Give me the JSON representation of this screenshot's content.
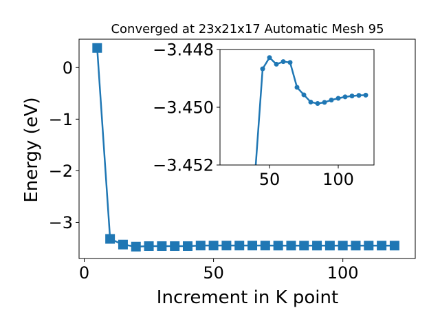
{
  "chart_data": [
    {
      "type": "line",
      "title": "Converged at 23x21x17 Automatic Mesh 95",
      "xlabel": "Increment in K point",
      "ylabel": "Energy (eV)",
      "xlim": [
        -2,
        128
      ],
      "ylim": [
        -3.7,
        0.55
      ],
      "x_ticks": [
        0,
        50,
        100
      ],
      "y_ticks": [
        0,
        -1,
        -2,
        -3
      ],
      "y_tick_labels": [
        "0",
        "−1",
        "−2",
        "−3"
      ],
      "marker": "square",
      "color": "#1f77b4",
      "grid": false,
      "series": [
        {
          "x": [
            5,
            10,
            15,
            20,
            25,
            30,
            35,
            40,
            45,
            50,
            55,
            60,
            65,
            70,
            75,
            80,
            85,
            90,
            95,
            100,
            105,
            110,
            115,
            120
          ],
          "y": [
            0.38,
            -3.32,
            -3.43,
            -3.47,
            -3.46,
            -3.46,
            -3.46,
            -3.46,
            -3.449,
            -3.449,
            -3.449,
            -3.449,
            -3.449,
            -3.449,
            -3.45,
            -3.45,
            -3.45,
            -3.45,
            -3.45,
            -3.45,
            -3.45,
            -3.45,
            -3.45,
            -3.45
          ]
        }
      ]
    },
    {
      "type": "line",
      "title": "",
      "xlabel": "",
      "ylabel": "",
      "xlim": [
        14,
        126
      ],
      "ylim": [
        -3.452,
        -3.448
      ],
      "x_ticks": [
        50,
        100
      ],
      "y_ticks": [
        -3.452,
        -3.45,
        -3.448
      ],
      "y_tick_labels": [
        "−3.452",
        "−3.450",
        "−3.448"
      ],
      "marker": "circle",
      "color": "#1f77b4",
      "grid": false,
      "series": [
        {
          "x": [
            40,
            45,
            50,
            55,
            60,
            65,
            70,
            75,
            80,
            85,
            90,
            95,
            100,
            105,
            110,
            115,
            120
          ],
          "y": [
            -3.456,
            -3.44867,
            -3.44828,
            -3.44851,
            -3.44842,
            -3.44845,
            -3.44931,
            -3.44957,
            -3.44982,
            -3.44987,
            -3.44983,
            -3.44975,
            -3.44969,
            -3.44964,
            -3.44961,
            -3.44959,
            -3.44958
          ]
        }
      ]
    }
  ]
}
